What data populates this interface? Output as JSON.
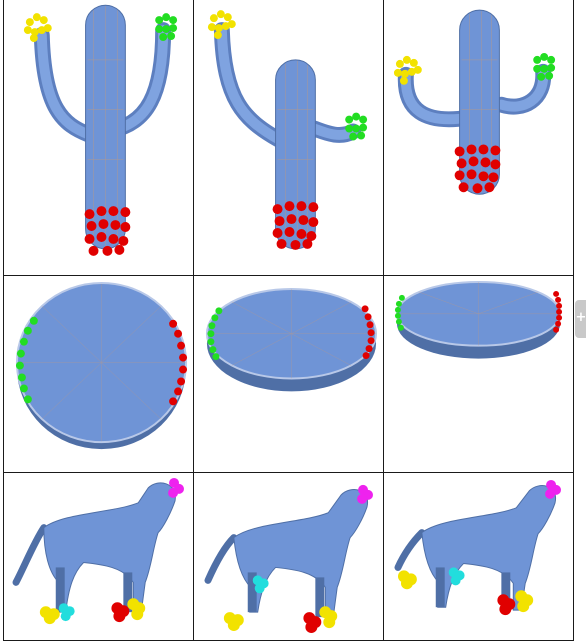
{
  "figure": {
    "rows": [
      {
        "subject": "cactus",
        "cells": [
          {
            "name": "cactus-pose-1"
          },
          {
            "name": "cactus-pose-2"
          },
          {
            "name": "cactus-pose-3"
          }
        ]
      },
      {
        "subject": "disk",
        "cells": [
          {
            "name": "disk-view-1"
          },
          {
            "name": "disk-view-2"
          },
          {
            "name": "disk-view-3"
          }
        ]
      },
      {
        "subject": "dog",
        "cells": [
          {
            "name": "dog-pose-1"
          },
          {
            "name": "dog-pose-2"
          },
          {
            "name": "dog-pose-3"
          }
        ]
      }
    ]
  },
  "colors": {
    "mesh": "#6f94d6",
    "mesh_dark": "#4f6fa6",
    "wire": "#d99a66",
    "marker_red": "#e00000",
    "marker_green": "#22dd22",
    "marker_yellow": "#f2e200",
    "marker_cyan": "#22dddd",
    "marker_magenta": "#ee22ee",
    "grid_line": "#1a1a1a",
    "side_tab": "#c9c9c9"
  },
  "side_tab": {
    "glyph": "+"
  }
}
